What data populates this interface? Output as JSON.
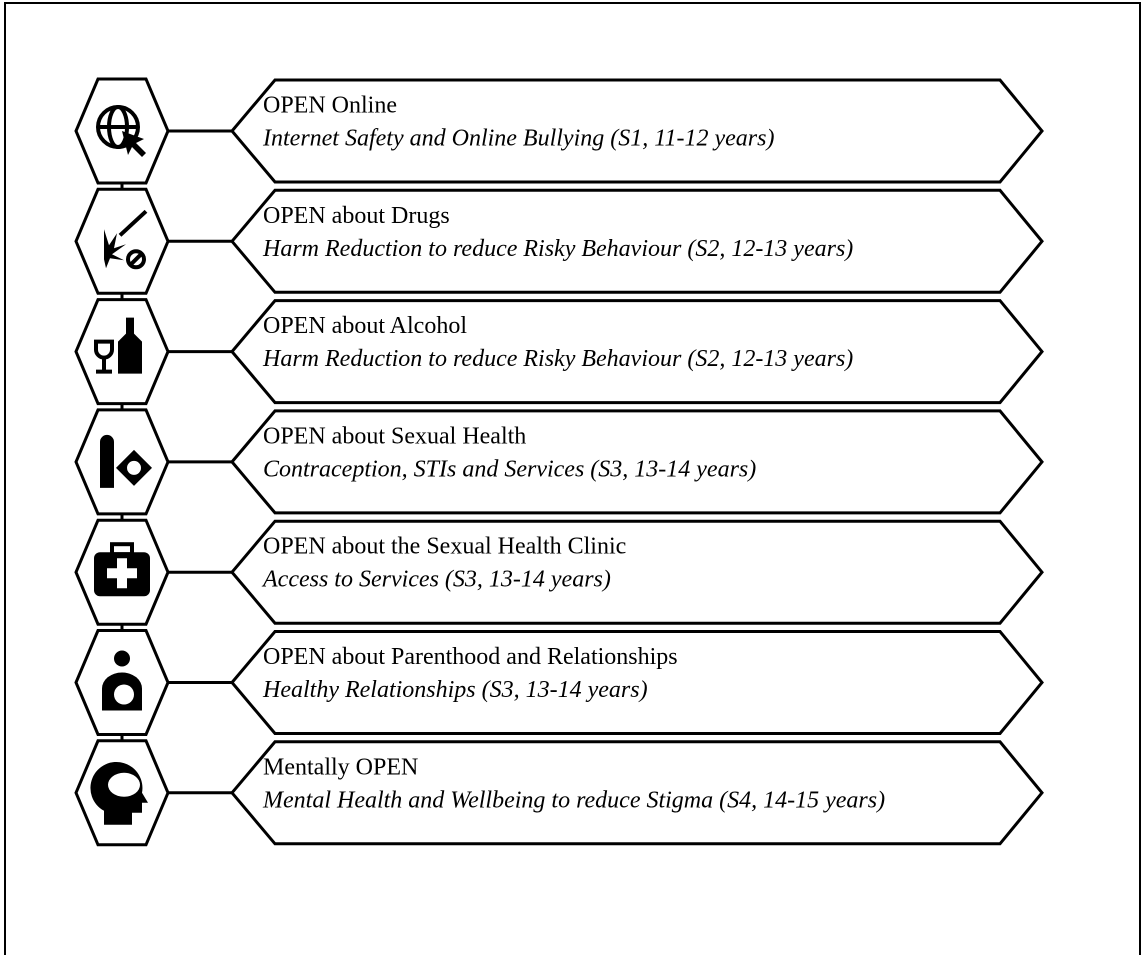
{
  "items": [
    {
      "title": "OPEN Online",
      "subtitle": "Internet Safety and Online Bullying (S1, 11-12 years)"
    },
    {
      "title": "OPEN about Drugs",
      "subtitle": "Harm Reduction to reduce Risky Behaviour (S2, 12-13 years)"
    },
    {
      "title": "OPEN about Alcohol",
      "subtitle": "Harm Reduction to reduce Risky Behaviour (S2, 12-13 years)"
    },
    {
      "title": "OPEN about Sexual Health",
      "subtitle": "Contraception, STIs and Services (S3, 13-14 years)"
    },
    {
      "title": "OPEN about the Sexual Health Clinic",
      "subtitle": "Access to Services (S3, 13-14 years)"
    },
    {
      "title": "OPEN about Parenthood and Relationships",
      "subtitle": "Healthy Relationships (S3, 13-14 years)"
    },
    {
      "title": "Mentally OPEN",
      "subtitle": "Mental Health and Wellbeing to reduce Stigma (S4, 14-15 years)"
    }
  ]
}
